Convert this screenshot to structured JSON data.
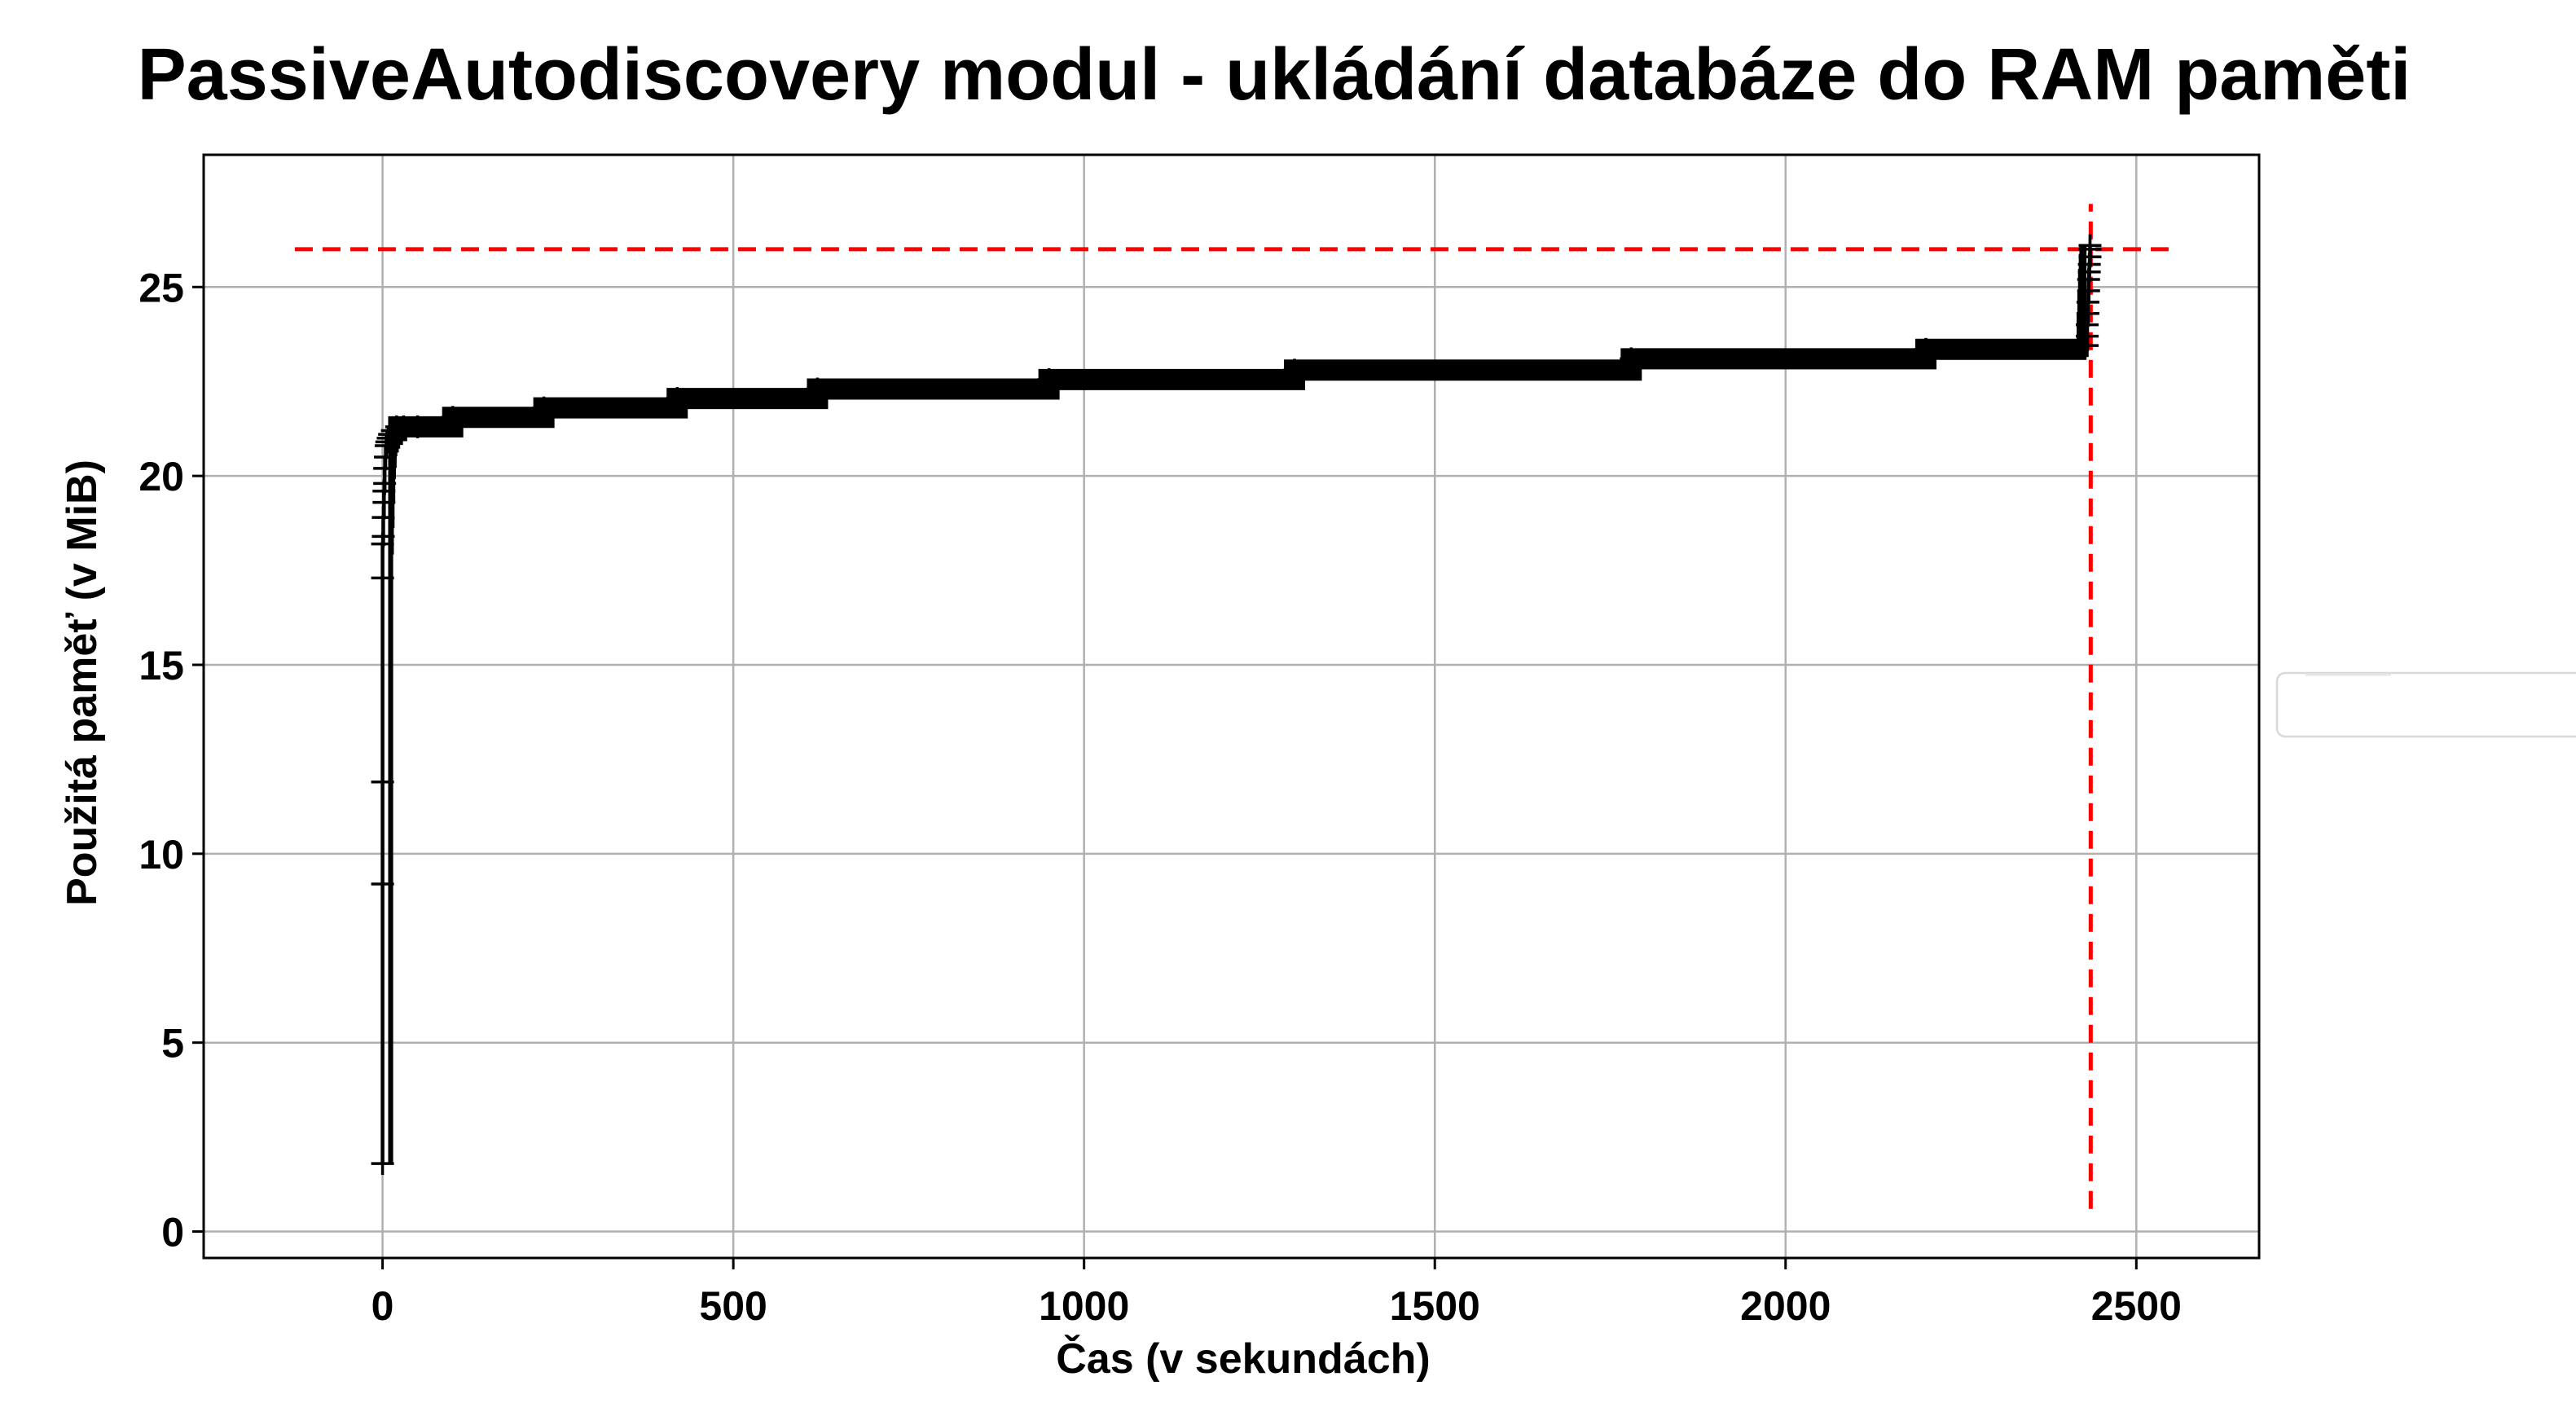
{
  "chart_data": {
    "type": "line",
    "title": "PassiveAutodiscovery modul - ukládání databáze do RAM paměti",
    "xlabel": "Čas (v sekundách)",
    "ylabel": "Použitá paměť (v MiB)",
    "xlim": [
      -255,
      2675
    ],
    "ylim": [
      -0.7,
      28.5
    ],
    "xticks": [
      0,
      500,
      1000,
      1500,
      2000,
      2500
    ],
    "yticks": [
      0,
      5,
      10,
      15,
      20,
      25
    ],
    "grid": true,
    "legend": "right",
    "colors": {
      "series": "#000000",
      "reference": "#ff0000",
      "grid": "#b0b0b0"
    },
    "series": [
      {
        "marker": "plus",
        "x": [
          0,
          0,
          0,
          0,
          0,
          1,
          1,
          2,
          2,
          3,
          3,
          4,
          5,
          6,
          8,
          10,
          14,
          20,
          30,
          50,
          100,
          230,
          420,
          620,
          950,
          1300,
          1780,
          2200,
          2430,
          2430,
          2430,
          2431,
          2431,
          2432,
          2432,
          2433,
          2433,
          2434,
          2434,
          2434
        ],
        "y": [
          1.8,
          9.2,
          11.9,
          17.3,
          18.2,
          18.4,
          18.9,
          19.3,
          19.6,
          19.8,
          20.2,
          20.5,
          20.8,
          20.9,
          21.0,
          21.1,
          21.2,
          21.3,
          21.3,
          21.3,
          21.55,
          21.8,
          22.05,
          22.3,
          22.55,
          22.8,
          23.1,
          23.35,
          23.45,
          23.7,
          24.0,
          24.3,
          24.6,
          24.9,
          25.2,
          25.4,
          25.6,
          25.8,
          26.0,
          26.1
        ]
      }
    ],
    "reference_lines": [
      {
        "orientation": "horizontal",
        "value": 26.0,
        "from": -125,
        "to": 2555,
        "style": "dashed"
      },
      {
        "orientation": "vertical",
        "value": 2435,
        "from": 0.6,
        "to": 27.2,
        "style": "dashed"
      }
    ]
  }
}
